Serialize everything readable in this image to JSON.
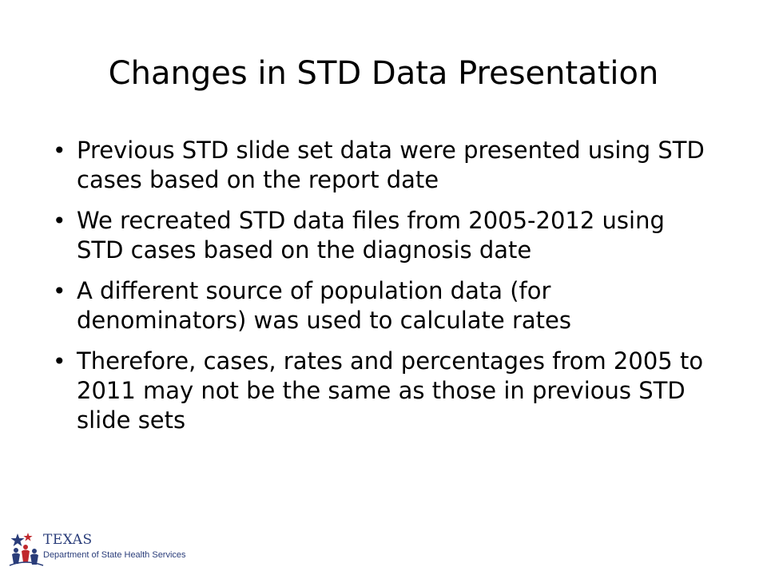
{
  "slide": {
    "title": "Changes in STD Data Presentation",
    "bullets": [
      "Previous STD slide set data were presented using STD cases based on the report date",
      "We recreated STD data files from 2005-2012 using STD cases based on the diagnosis date",
      "A different source of population data (for denominators) was used to calculate rates",
      "Therefore, cases, rates and percentages from 2005 to 2011 may not be the same as those in previous STD slide sets"
    ],
    "bullet_symbol": "•"
  },
  "logo": {
    "name_line": "TEXAS",
    "department_line": "Department of State Health Services",
    "icon": "texas-dshs-logo-icon",
    "colors": {
      "blue": "#2a3d7a",
      "red": "#c0282d"
    }
  }
}
